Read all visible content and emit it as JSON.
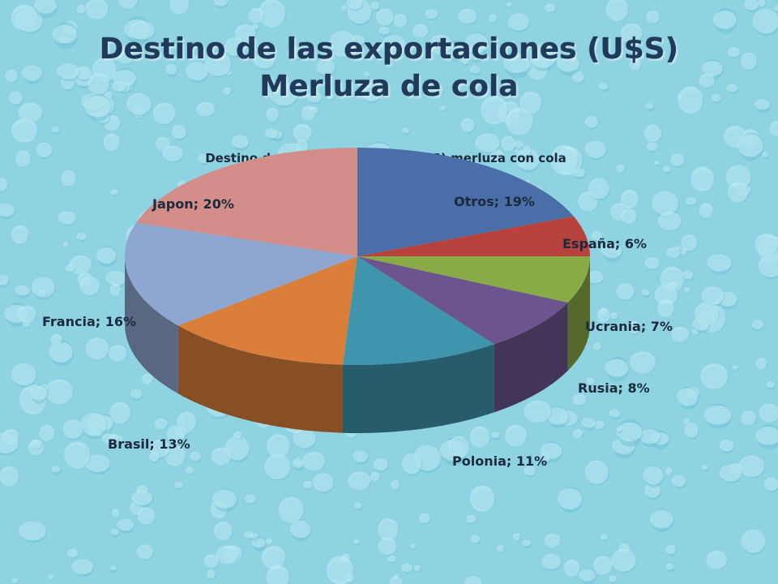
{
  "slide": {
    "title_line1": "Destino de las exportaciones (U$S)",
    "title_line2": "Merluza de cola"
  },
  "background": {
    "base": "#8fd3e3",
    "drop": "#c5eef6",
    "drop_dark": "#5fb6cb"
  },
  "chart_data": {
    "type": "pie",
    "style": "3d",
    "title": "Destino de las exportaciones (U$S) merluza con cola",
    "slices": [
      {
        "name": "Otros",
        "value": 19,
        "label": "Otros; 19%",
        "color": "#4a6fa8"
      },
      {
        "name": "España",
        "value": 6,
        "label": "España; 6%",
        "color": "#b8433e"
      },
      {
        "name": "Ucrania",
        "value": 7,
        "label": "Ucrania; 7%",
        "color": "#8aaa48"
      },
      {
        "name": "Rusia",
        "value": 8,
        "label": "Rusia; 8%",
        "color": "#6c558e"
      },
      {
        "name": "Polonia",
        "value": 11,
        "label": "Polonia; 11%",
        "color": "#3f95ab"
      },
      {
        "name": "Brasil",
        "value": 13,
        "label": "Brasil; 13%",
        "color": "#d97f3a"
      },
      {
        "name": "Francia",
        "value": 16,
        "label": "Francia; 16%",
        "color": "#8fa7d0"
      },
      {
        "name": "Japon",
        "value": 20,
        "label": "Japon; 20%",
        "color": "#d48e8a"
      }
    ]
  }
}
